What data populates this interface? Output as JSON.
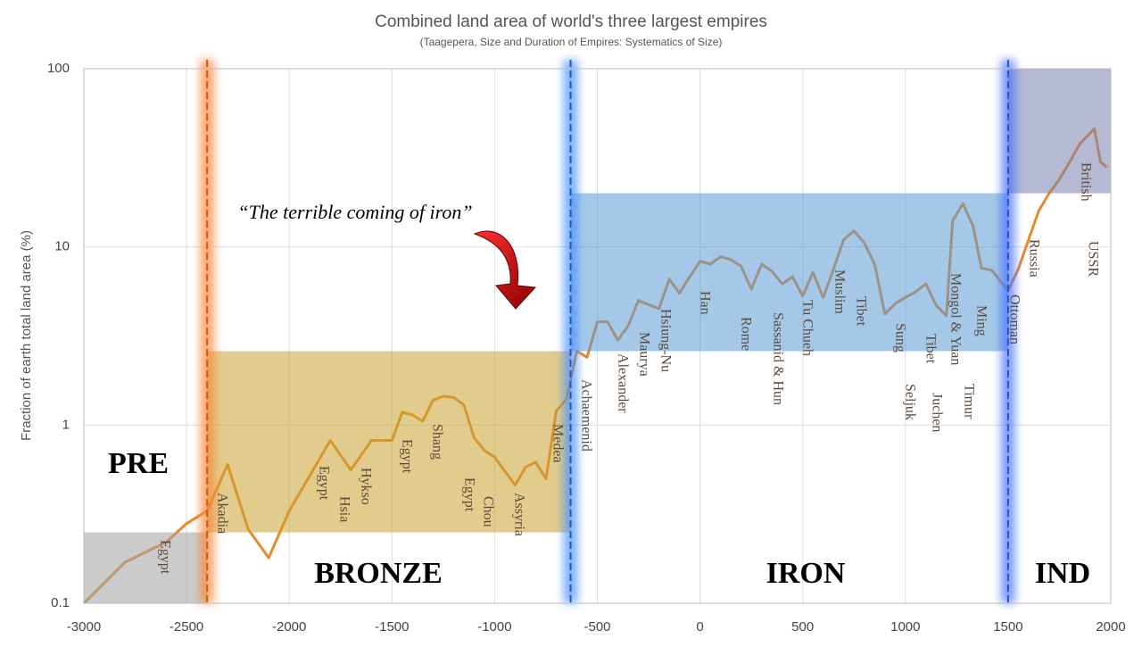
{
  "chart_data": {
    "type": "line",
    "title": "Combined land area of world's three largest empires",
    "subtitle": "(Taagepera, Size and Duration of Empires: Systematics of Size)",
    "y_label": "Fraction of earth total land area (%)",
    "log_y": true,
    "grid": true,
    "xlim": [
      -3000,
      2000
    ],
    "xticks": [
      -3000,
      -2500,
      -2000,
      -1500,
      -1000,
      -500,
      0,
      500,
      1000,
      1500,
      2000
    ],
    "ylim": [
      0.1,
      100
    ],
    "yticks": [
      0.1,
      1,
      10,
      100
    ],
    "series": [
      {
        "color": "#e8892a",
        "x": [
          -3000,
          -2800,
          -2600,
          -2500,
          -2400,
          -2300,
          -2200,
          -2100,
          -2000,
          -1800,
          -1700,
          -1600,
          -1500,
          -1450,
          -1400,
          -1350,
          -1300,
          -1250,
          -1200,
          -1150,
          -1100,
          -1050,
          -1000,
          -900,
          -850,
          -800,
          -750,
          -700,
          -650,
          -600,
          -550,
          -500,
          -450,
          -400,
          -350,
          -300,
          -200,
          -150,
          -100,
          -50,
          0,
          50,
          100,
          150,
          200,
          250,
          300,
          350,
          400,
          450,
          500,
          550,
          600,
          650,
          700,
          750,
          800,
          850,
          900,
          950,
          1000,
          1050,
          1100,
          1150,
          1200,
          1230,
          1280,
          1330,
          1370,
          1420,
          1500,
          1550,
          1600,
          1650,
          1700,
          1750,
          1800,
          1850,
          1920,
          1950,
          1980
        ],
        "values": [
          0.1,
          0.17,
          0.22,
          0.28,
          0.33,
          0.6,
          0.26,
          0.18,
          0.33,
          0.82,
          0.56,
          0.82,
          0.82,
          1.18,
          1.14,
          1.05,
          1.38,
          1.45,
          1.43,
          1.3,
          0.85,
          0.72,
          0.66,
          0.46,
          0.58,
          0.62,
          0.5,
          1.2,
          1.4,
          2.6,
          2.4,
          3.8,
          3.8,
          3.0,
          3.6,
          5.0,
          4.5,
          6.6,
          5.5,
          6.8,
          8.3,
          8.0,
          8.8,
          8.5,
          7.8,
          5.8,
          8.0,
          7.3,
          6.2,
          6.8,
          5.3,
          7.2,
          5.2,
          7.5,
          11,
          12.3,
          10.5,
          8.0,
          4.2,
          4.8,
          5.2,
          5.6,
          6.2,
          4.7,
          4.1,
          14,
          17.5,
          13,
          7.6,
          7.4,
          5.7,
          7.5,
          11,
          16,
          20,
          24,
          30,
          38,
          46,
          30,
          28
        ]
      }
    ],
    "eras": [
      {
        "label": "PRE",
        "x": [
          -3000,
          -2400
        ],
        "y": [
          0.1,
          0.25
        ],
        "color": "#a0a0a0"
      },
      {
        "label": "BRONZE",
        "x": [
          -2400,
          -630
        ],
        "y": [
          0.25,
          2.6
        ],
        "color": "#c9a230"
      },
      {
        "label": "IRON",
        "x": [
          -630,
          1500
        ],
        "y": [
          2.6,
          20
        ],
        "color": "#5b9bd5"
      },
      {
        "label": "IND",
        "x": [
          1500,
          2000
        ],
        "y": [
          20,
          100
        ],
        "color": "#7a80b0"
      }
    ],
    "boundaries": [
      {
        "x": -2400,
        "color": "#ff8030"
      },
      {
        "x": -630,
        "color": "#4090ff"
      },
      {
        "x": 1500,
        "color": "#4070ff"
      }
    ],
    "quote": "“The terrible coming of iron”",
    "empires": [
      "Egypt",
      "Akadia",
      "Egypt",
      "Hsia",
      "Hykso",
      "Egypt",
      "Shang",
      "Egypt",
      "Chou",
      "Assyria",
      "Medea",
      "Achaemenid",
      "Alexander",
      "Maurya",
      "Hsiung-Nu",
      "Han",
      "Rome",
      "Sassanid & Hun",
      "Tu Chueh",
      "Muslim",
      "Tibet",
      "Sung",
      "Seljuk",
      "Tibet",
      "Juchen",
      "Mongol & Yuan",
      "Timur",
      "Ming",
      "Ottoman",
      "Russia",
      "British",
      "USSR"
    ]
  }
}
